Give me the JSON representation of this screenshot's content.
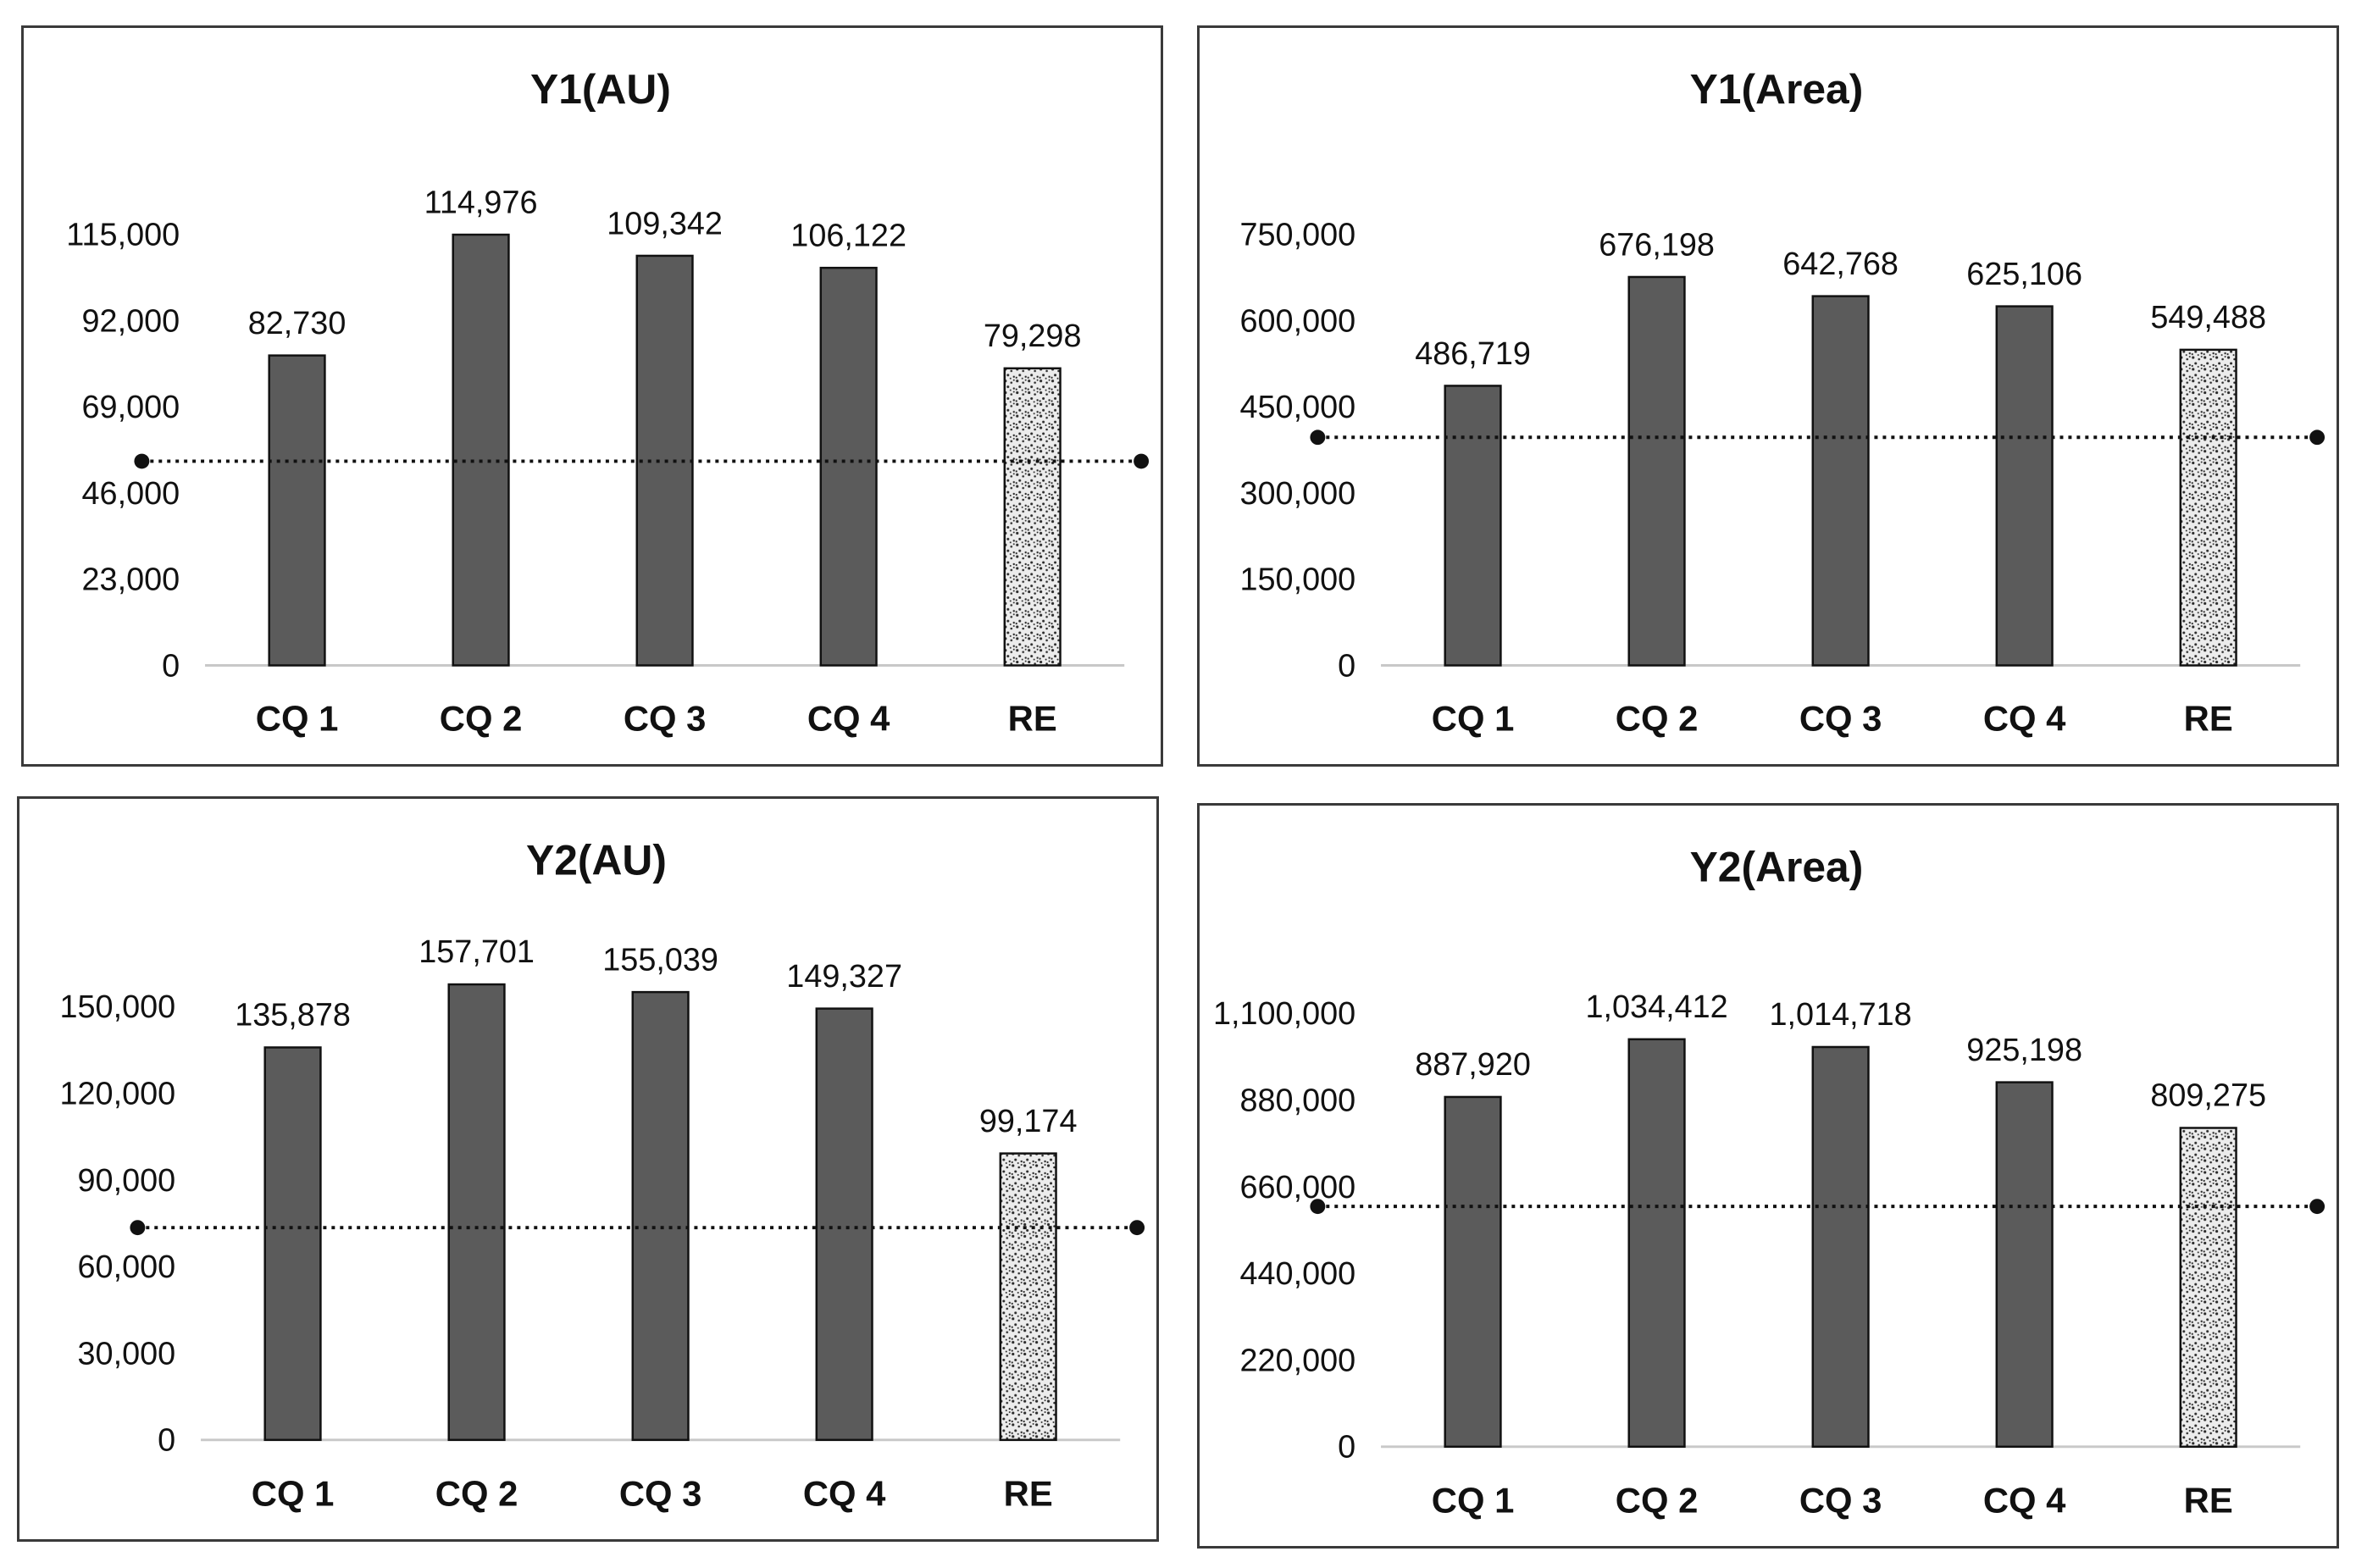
{
  "colors": {
    "bar_fill": "#5b5b5b",
    "bar_stroke": "#111111",
    "speckle_bg": "#ececec",
    "speckle_dot": "#2a2a2a",
    "axis_line": "#c8c8c8",
    "ref_line": "#111111"
  },
  "chart_data": [
    {
      "type": "bar",
      "title": "Y1(AU)",
      "categories": [
        "CQ 1",
        "CQ 2",
        "CQ 3",
        "CQ 4",
        "RE"
      ],
      "values": [
        82730,
        114976,
        109342,
        106122,
        79298
      ],
      "value_labels": [
        "82,730",
        "114,976",
        "109,342",
        "106,122",
        "79,298"
      ],
      "patterned_categories": [
        "RE"
      ],
      "ylim": [
        0,
        115000
      ],
      "yticks": [
        0,
        23000,
        46000,
        69000,
        92000,
        115000
      ],
      "ytick_labels": [
        "0",
        "23,000",
        "46,000",
        "69,000",
        "92,000",
        "115,000"
      ],
      "reference_line": 54500
    },
    {
      "type": "bar",
      "title": "Y1(Area)",
      "categories": [
        "CQ 1",
        "CQ 2",
        "CQ 3",
        "CQ 4",
        "RE"
      ],
      "values": [
        486719,
        676198,
        642768,
        625106,
        549488
      ],
      "value_labels": [
        "486,719",
        "676,198",
        "642,768",
        "625,106",
        "549,488"
      ],
      "patterned_categories": [
        "RE"
      ],
      "ylim": [
        0,
        750000
      ],
      "yticks": [
        0,
        150000,
        300000,
        450000,
        600000,
        750000
      ],
      "ytick_labels": [
        "0",
        "150,000",
        "300,000",
        "450,000",
        "600,000",
        "750,000"
      ],
      "reference_line": 397000
    },
    {
      "type": "bar",
      "title": "Y2(AU)",
      "categories": [
        "CQ 1",
        "CQ 2",
        "CQ 3",
        "CQ 4",
        "RE"
      ],
      "values": [
        135878,
        157701,
        155039,
        149327,
        99174
      ],
      "value_labels": [
        "135,878",
        "157,701",
        "155,039",
        "149,327",
        "99,174"
      ],
      "patterned_categories": [
        "RE"
      ],
      "ylim": [
        0,
        150000
      ],
      "yticks": [
        0,
        30000,
        60000,
        90000,
        120000,
        150000
      ],
      "ytick_labels": [
        "0",
        "30,000",
        "60,000",
        "90,000",
        "120,000",
        "150,000"
      ],
      "reference_line": 73500
    },
    {
      "type": "bar",
      "title": "Y2(Area)",
      "categories": [
        "CQ 1",
        "CQ 2",
        "CQ 3",
        "CQ 4",
        "RE"
      ],
      "values": [
        887920,
        1034412,
        1014718,
        925198,
        809275
      ],
      "value_labels": [
        "887,920",
        "1,034,412",
        "1,014,718",
        "925,198",
        "809,275"
      ],
      "patterned_categories": [
        "RE"
      ],
      "ylim": [
        0,
        1100000
      ],
      "yticks": [
        0,
        220000,
        440000,
        660000,
        880000,
        1100000
      ],
      "ytick_labels": [
        "0",
        "220,000",
        "440,000",
        "660,000",
        "880,000",
        "1,100,000"
      ],
      "reference_line": 610000
    }
  ]
}
